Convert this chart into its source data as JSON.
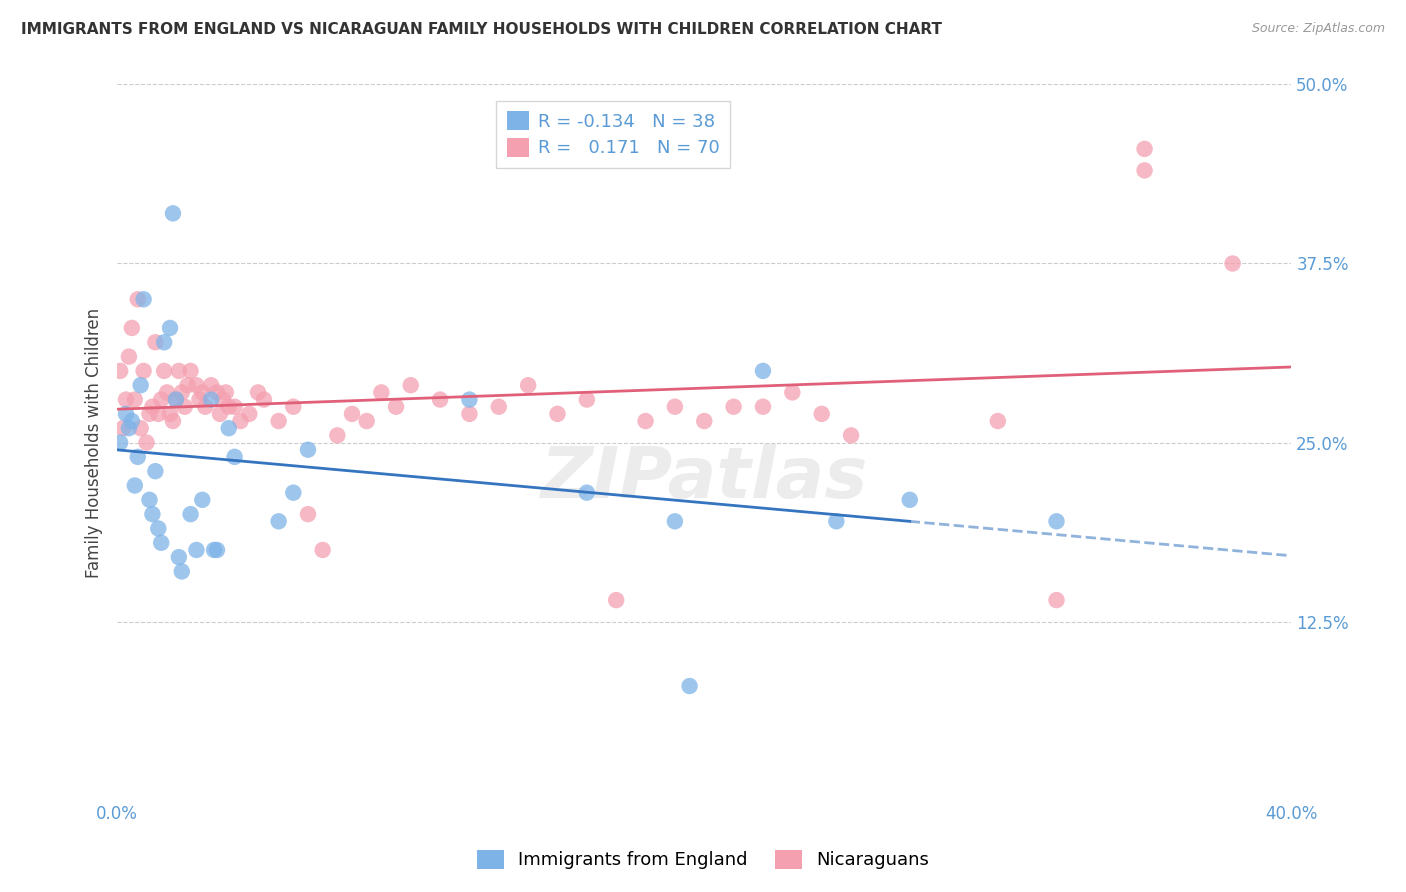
{
  "title": "IMMIGRANTS FROM ENGLAND VS NICARAGUAN FAMILY HOUSEHOLDS WITH CHILDREN CORRELATION CHART",
  "source": "Source: ZipAtlas.com",
  "ylabel": "Family Households with Children",
  "x_min": 0.0,
  "x_max": 0.4,
  "y_min": 0.0,
  "y_max": 0.5,
  "x_ticks": [
    0.0,
    0.1,
    0.2,
    0.3,
    0.4
  ],
  "x_tick_labels": [
    "0.0%",
    "",
    "",
    "",
    "40.0%"
  ],
  "y_ticks": [
    0.125,
    0.25,
    0.375,
    0.5
  ],
  "y_tick_labels": [
    "12.5%",
    "25.0%",
    "37.5%",
    "50.0%"
  ],
  "legend_labels": [
    "Immigrants from England",
    "Nicaraguans"
  ],
  "R_blue": -0.134,
  "N_blue": 38,
  "R_pink": 0.171,
  "N_pink": 70,
  "blue_color": "#7EB3E8",
  "pink_color": "#F4A0B0",
  "blue_line_color": "#3575C0",
  "pink_line_color": "#E0607A",
  "scatter_size": 140,
  "blue_x": [
    0.001,
    0.003,
    0.004,
    0.005,
    0.006,
    0.007,
    0.008,
    0.009,
    0.011,
    0.012,
    0.013,
    0.014,
    0.015,
    0.016,
    0.018,
    0.019,
    0.02,
    0.021,
    0.022,
    0.025,
    0.027,
    0.029,
    0.032,
    0.033,
    0.034,
    0.038,
    0.04,
    0.055,
    0.06,
    0.065,
    0.12,
    0.16,
    0.19,
    0.22,
    0.245,
    0.27,
    0.195,
    0.32
  ],
  "blue_y": [
    0.25,
    0.27,
    0.26,
    0.265,
    0.22,
    0.24,
    0.29,
    0.35,
    0.21,
    0.2,
    0.23,
    0.19,
    0.18,
    0.32,
    0.33,
    0.41,
    0.28,
    0.17,
    0.16,
    0.2,
    0.175,
    0.21,
    0.28,
    0.175,
    0.175,
    0.26,
    0.24,
    0.195,
    0.215,
    0.245,
    0.28,
    0.215,
    0.195,
    0.3,
    0.195,
    0.21,
    0.08,
    0.195
  ],
  "pink_x": [
    0.001,
    0.002,
    0.003,
    0.004,
    0.005,
    0.006,
    0.007,
    0.008,
    0.009,
    0.01,
    0.011,
    0.012,
    0.013,
    0.014,
    0.015,
    0.016,
    0.017,
    0.018,
    0.019,
    0.02,
    0.021,
    0.022,
    0.023,
    0.024,
    0.025,
    0.027,
    0.028,
    0.029,
    0.03,
    0.032,
    0.034,
    0.035,
    0.036,
    0.037,
    0.038,
    0.04,
    0.042,
    0.045,
    0.048,
    0.05,
    0.055,
    0.06,
    0.065,
    0.07,
    0.075,
    0.08,
    0.085,
    0.09,
    0.095,
    0.1,
    0.11,
    0.12,
    0.13,
    0.14,
    0.15,
    0.16,
    0.17,
    0.18,
    0.19,
    0.2,
    0.21,
    0.22,
    0.23,
    0.24,
    0.25,
    0.3,
    0.32,
    0.35,
    0.38,
    0.35
  ],
  "pink_y": [
    0.3,
    0.26,
    0.28,
    0.31,
    0.33,
    0.28,
    0.35,
    0.26,
    0.3,
    0.25,
    0.27,
    0.275,
    0.32,
    0.27,
    0.28,
    0.3,
    0.285,
    0.27,
    0.265,
    0.28,
    0.3,
    0.285,
    0.275,
    0.29,
    0.3,
    0.29,
    0.28,
    0.285,
    0.275,
    0.29,
    0.285,
    0.27,
    0.28,
    0.285,
    0.275,
    0.275,
    0.265,
    0.27,
    0.285,
    0.28,
    0.265,
    0.275,
    0.2,
    0.175,
    0.255,
    0.27,
    0.265,
    0.285,
    0.275,
    0.29,
    0.28,
    0.27,
    0.275,
    0.29,
    0.27,
    0.28,
    0.14,
    0.265,
    0.275,
    0.265,
    0.275,
    0.275,
    0.285,
    0.27,
    0.255,
    0.265,
    0.14,
    0.455,
    0.375,
    0.44
  ]
}
